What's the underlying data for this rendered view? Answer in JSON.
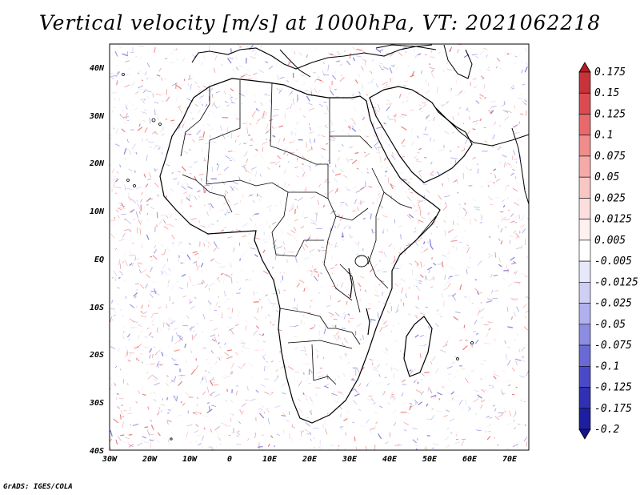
{
  "title": "Vertical velocity [m/s] at 1000hPa, VT: 2021062218",
  "credit": "GrADS: IGES/COLA",
  "map": {
    "lon_range": [
      -30,
      75
    ],
    "lat_range": [
      -40,
      45
    ],
    "y_ticks": [
      "40N",
      "30N",
      "20N",
      "10N",
      "EQ",
      "10S",
      "20S",
      "30S",
      "40S"
    ],
    "x_ticks": [
      "30W",
      "20W",
      "10W",
      "0",
      "10E",
      "20E",
      "30E",
      "40E",
      "50E",
      "60E",
      "70E"
    ]
  },
  "colorbar": {
    "labels": [
      "0.175",
      "0.15",
      "0.125",
      "0.1",
      "0.075",
      "0.05",
      "0.025",
      "0.0125",
      "0.005",
      "-0.005",
      "-0.0125",
      "-0.025",
      "-0.05",
      "-0.075",
      "-0.1",
      "-0.125",
      "-0.175",
      "-0.2"
    ],
    "colors": [
      "#b41e23",
      "#c8323a",
      "#dc4b50",
      "#e8696c",
      "#f08c8c",
      "#f5aaa8",
      "#f8c6c4",
      "#fbdedd",
      "#fdf0f0",
      "#ffffff",
      "#e8e8fb",
      "#cfcff5",
      "#b0b0ee",
      "#8c8ce2",
      "#6a6ad6",
      "#4a4ac8",
      "#3030b4",
      "#1e1ea0",
      "#14148c"
    ]
  },
  "chart_data": {
    "type": "heatmap",
    "title": "Vertical velocity [m/s] at 1000hPa, VT: 2021062218",
    "variable": "Vertical velocity",
    "units": "m/s",
    "level": "1000hPa",
    "valid_time": "2021062218",
    "x_range": [
      -30,
      75
    ],
    "y_range": [
      -40,
      45
    ],
    "levels": [
      -0.2,
      -0.175,
      -0.125,
      -0.1,
      -0.075,
      -0.05,
      -0.025,
      -0.0125,
      -0.005,
      0.005,
      0.0125,
      0.025,
      0.05,
      0.075,
      0.1,
      0.125,
      0.15,
      0.175
    ]
  }
}
